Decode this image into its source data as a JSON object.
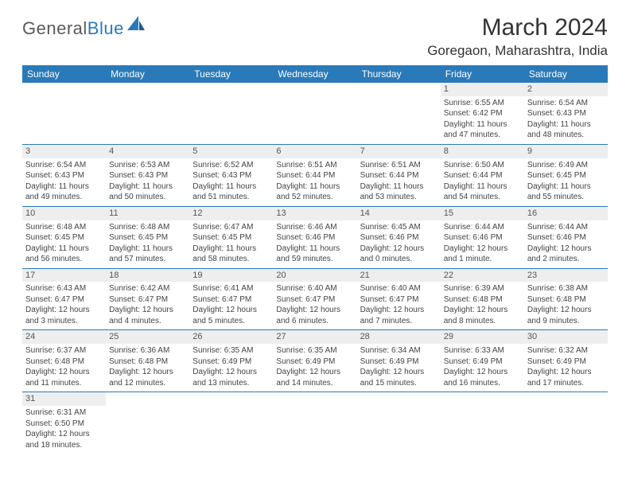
{
  "logo": {
    "general": "General",
    "blue": "Blue"
  },
  "title": "March 2024",
  "location": "Goregaon, Maharashtra, India",
  "colors": {
    "header_bg": "#2a7ab9",
    "header_fg": "#ffffff",
    "daynum_bg": "#eeeeee",
    "row_border": "#2a7ab9",
    "text": "#444444",
    "background": "#ffffff"
  },
  "fonts": {
    "title_size": 30,
    "location_size": 17,
    "weekday_size": 12,
    "cell_size": 10,
    "daynum_size": 11,
    "logo_size": 22
  },
  "weekdays": [
    "Sunday",
    "Monday",
    "Tuesday",
    "Wednesday",
    "Thursday",
    "Friday",
    "Saturday"
  ],
  "weeks": [
    [
      null,
      null,
      null,
      null,
      null,
      {
        "day": "1",
        "sunrise": "Sunrise: 6:55 AM",
        "sunset": "Sunset: 6:42 PM",
        "daylight1": "Daylight: 11 hours",
        "daylight2": "and 47 minutes."
      },
      {
        "day": "2",
        "sunrise": "Sunrise: 6:54 AM",
        "sunset": "Sunset: 6:43 PM",
        "daylight1": "Daylight: 11 hours",
        "daylight2": "and 48 minutes."
      }
    ],
    [
      {
        "day": "3",
        "sunrise": "Sunrise: 6:54 AM",
        "sunset": "Sunset: 6:43 PM",
        "daylight1": "Daylight: 11 hours",
        "daylight2": "and 49 minutes."
      },
      {
        "day": "4",
        "sunrise": "Sunrise: 6:53 AM",
        "sunset": "Sunset: 6:43 PM",
        "daylight1": "Daylight: 11 hours",
        "daylight2": "and 50 minutes."
      },
      {
        "day": "5",
        "sunrise": "Sunrise: 6:52 AM",
        "sunset": "Sunset: 6:43 PM",
        "daylight1": "Daylight: 11 hours",
        "daylight2": "and 51 minutes."
      },
      {
        "day": "6",
        "sunrise": "Sunrise: 6:51 AM",
        "sunset": "Sunset: 6:44 PM",
        "daylight1": "Daylight: 11 hours",
        "daylight2": "and 52 minutes."
      },
      {
        "day": "7",
        "sunrise": "Sunrise: 6:51 AM",
        "sunset": "Sunset: 6:44 PM",
        "daylight1": "Daylight: 11 hours",
        "daylight2": "and 53 minutes."
      },
      {
        "day": "8",
        "sunrise": "Sunrise: 6:50 AM",
        "sunset": "Sunset: 6:44 PM",
        "daylight1": "Daylight: 11 hours",
        "daylight2": "and 54 minutes."
      },
      {
        "day": "9",
        "sunrise": "Sunrise: 6:49 AM",
        "sunset": "Sunset: 6:45 PM",
        "daylight1": "Daylight: 11 hours",
        "daylight2": "and 55 minutes."
      }
    ],
    [
      {
        "day": "10",
        "sunrise": "Sunrise: 6:48 AM",
        "sunset": "Sunset: 6:45 PM",
        "daylight1": "Daylight: 11 hours",
        "daylight2": "and 56 minutes."
      },
      {
        "day": "11",
        "sunrise": "Sunrise: 6:48 AM",
        "sunset": "Sunset: 6:45 PM",
        "daylight1": "Daylight: 11 hours",
        "daylight2": "and 57 minutes."
      },
      {
        "day": "12",
        "sunrise": "Sunrise: 6:47 AM",
        "sunset": "Sunset: 6:45 PM",
        "daylight1": "Daylight: 11 hours",
        "daylight2": "and 58 minutes."
      },
      {
        "day": "13",
        "sunrise": "Sunrise: 6:46 AM",
        "sunset": "Sunset: 6:46 PM",
        "daylight1": "Daylight: 11 hours",
        "daylight2": "and 59 minutes."
      },
      {
        "day": "14",
        "sunrise": "Sunrise: 6:45 AM",
        "sunset": "Sunset: 6:46 PM",
        "daylight1": "Daylight: 12 hours",
        "daylight2": "and 0 minutes."
      },
      {
        "day": "15",
        "sunrise": "Sunrise: 6:44 AM",
        "sunset": "Sunset: 6:46 PM",
        "daylight1": "Daylight: 12 hours",
        "daylight2": "and 1 minute."
      },
      {
        "day": "16",
        "sunrise": "Sunrise: 6:44 AM",
        "sunset": "Sunset: 6:46 PM",
        "daylight1": "Daylight: 12 hours",
        "daylight2": "and 2 minutes."
      }
    ],
    [
      {
        "day": "17",
        "sunrise": "Sunrise: 6:43 AM",
        "sunset": "Sunset: 6:47 PM",
        "daylight1": "Daylight: 12 hours",
        "daylight2": "and 3 minutes."
      },
      {
        "day": "18",
        "sunrise": "Sunrise: 6:42 AM",
        "sunset": "Sunset: 6:47 PM",
        "daylight1": "Daylight: 12 hours",
        "daylight2": "and 4 minutes."
      },
      {
        "day": "19",
        "sunrise": "Sunrise: 6:41 AM",
        "sunset": "Sunset: 6:47 PM",
        "daylight1": "Daylight: 12 hours",
        "daylight2": "and 5 minutes."
      },
      {
        "day": "20",
        "sunrise": "Sunrise: 6:40 AM",
        "sunset": "Sunset: 6:47 PM",
        "daylight1": "Daylight: 12 hours",
        "daylight2": "and 6 minutes."
      },
      {
        "day": "21",
        "sunrise": "Sunrise: 6:40 AM",
        "sunset": "Sunset: 6:47 PM",
        "daylight1": "Daylight: 12 hours",
        "daylight2": "and 7 minutes."
      },
      {
        "day": "22",
        "sunrise": "Sunrise: 6:39 AM",
        "sunset": "Sunset: 6:48 PM",
        "daylight1": "Daylight: 12 hours",
        "daylight2": "and 8 minutes."
      },
      {
        "day": "23",
        "sunrise": "Sunrise: 6:38 AM",
        "sunset": "Sunset: 6:48 PM",
        "daylight1": "Daylight: 12 hours",
        "daylight2": "and 9 minutes."
      }
    ],
    [
      {
        "day": "24",
        "sunrise": "Sunrise: 6:37 AM",
        "sunset": "Sunset: 6:48 PM",
        "daylight1": "Daylight: 12 hours",
        "daylight2": "and 11 minutes."
      },
      {
        "day": "25",
        "sunrise": "Sunrise: 6:36 AM",
        "sunset": "Sunset: 6:48 PM",
        "daylight1": "Daylight: 12 hours",
        "daylight2": "and 12 minutes."
      },
      {
        "day": "26",
        "sunrise": "Sunrise: 6:35 AM",
        "sunset": "Sunset: 6:49 PM",
        "daylight1": "Daylight: 12 hours",
        "daylight2": "and 13 minutes."
      },
      {
        "day": "27",
        "sunrise": "Sunrise: 6:35 AM",
        "sunset": "Sunset: 6:49 PM",
        "daylight1": "Daylight: 12 hours",
        "daylight2": "and 14 minutes."
      },
      {
        "day": "28",
        "sunrise": "Sunrise: 6:34 AM",
        "sunset": "Sunset: 6:49 PM",
        "daylight1": "Daylight: 12 hours",
        "daylight2": "and 15 minutes."
      },
      {
        "day": "29",
        "sunrise": "Sunrise: 6:33 AM",
        "sunset": "Sunset: 6:49 PM",
        "daylight1": "Daylight: 12 hours",
        "daylight2": "and 16 minutes."
      },
      {
        "day": "30",
        "sunrise": "Sunrise: 6:32 AM",
        "sunset": "Sunset: 6:49 PM",
        "daylight1": "Daylight: 12 hours",
        "daylight2": "and 17 minutes."
      }
    ],
    [
      {
        "day": "31",
        "sunrise": "Sunrise: 6:31 AM",
        "sunset": "Sunset: 6:50 PM",
        "daylight1": "Daylight: 12 hours",
        "daylight2": "and 18 minutes."
      },
      null,
      null,
      null,
      null,
      null,
      null
    ]
  ]
}
